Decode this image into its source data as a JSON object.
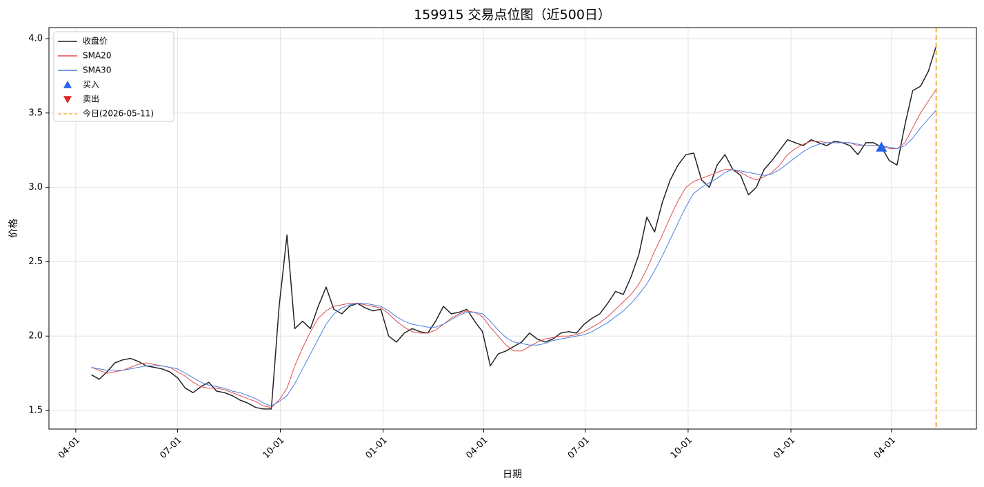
{
  "chart_data": {
    "type": "line",
    "title": "159915 交易点位图（近500日）",
    "xlabel": "日期",
    "ylabel": "价格",
    "x": [
      "2024-04-15",
      "2024-04-22",
      "2024-04-29",
      "2024-05-06",
      "2024-05-13",
      "2024-05-20",
      "2024-05-27",
      "2024-06-03",
      "2024-06-10",
      "2024-06-17",
      "2024-06-24",
      "2024-07-01",
      "2024-07-08",
      "2024-07-15",
      "2024-07-22",
      "2024-07-29",
      "2024-08-05",
      "2024-08-12",
      "2024-08-19",
      "2024-08-26",
      "2024-09-02",
      "2024-09-09",
      "2024-09-16",
      "2024-09-23",
      "2024-09-30",
      "2024-10-07",
      "2024-10-14",
      "2024-10-21",
      "2024-10-28",
      "2024-11-04",
      "2024-11-11",
      "2024-11-18",
      "2024-11-25",
      "2024-12-02",
      "2024-12-09",
      "2024-12-16",
      "2024-12-23",
      "2024-12-30",
      "2025-01-06",
      "2025-01-13",
      "2025-01-20",
      "2025-01-27",
      "2025-02-03",
      "2025-02-10",
      "2025-02-17",
      "2025-02-24",
      "2025-03-03",
      "2025-03-10",
      "2025-03-17",
      "2025-03-24",
      "2025-03-31",
      "2025-04-07",
      "2025-04-14",
      "2025-04-21",
      "2025-04-28",
      "2025-05-05",
      "2025-05-12",
      "2025-05-19",
      "2025-05-26",
      "2025-06-02",
      "2025-06-09",
      "2025-06-16",
      "2025-06-23",
      "2025-06-30",
      "2025-07-07",
      "2025-07-14",
      "2025-07-21",
      "2025-07-28",
      "2025-08-04",
      "2025-08-11",
      "2025-08-18",
      "2025-08-25",
      "2025-09-01",
      "2025-09-08",
      "2025-09-15",
      "2025-09-22",
      "2025-09-29",
      "2025-10-06",
      "2025-10-13",
      "2025-10-20",
      "2025-10-27",
      "2025-11-03",
      "2025-11-10",
      "2025-11-17",
      "2025-11-24",
      "2025-12-01",
      "2025-12-08",
      "2025-12-15",
      "2025-12-22",
      "2025-12-29",
      "2026-01-05",
      "2026-01-12",
      "2026-01-19",
      "2026-01-26",
      "2026-02-02",
      "2026-02-09",
      "2026-02-16",
      "2026-02-23",
      "2026-03-02",
      "2026-03-09",
      "2026-03-16",
      "2026-03-23",
      "2026-03-30",
      "2026-04-06",
      "2026-04-13",
      "2026-04-20",
      "2026-04-27",
      "2026-05-04",
      "2026-05-11"
    ],
    "series": [
      {
        "name": "收盘价",
        "color": "#222222",
        "width": 1.5,
        "values": [
          1.74,
          1.71,
          1.76,
          1.82,
          1.84,
          1.85,
          1.83,
          1.8,
          1.79,
          1.78,
          1.76,
          1.72,
          1.65,
          1.62,
          1.66,
          1.69,
          1.63,
          1.62,
          1.6,
          1.57,
          1.55,
          1.52,
          1.51,
          1.51,
          2.2,
          2.68,
          2.05,
          2.1,
          2.05,
          2.2,
          2.33,
          2.18,
          2.15,
          2.2,
          2.22,
          2.19,
          2.17,
          2.18,
          2.0,
          1.96,
          2.02,
          2.05,
          2.03,
          2.02,
          2.1,
          2.2,
          2.15,
          2.16,
          2.18,
          2.1,
          2.03,
          1.8,
          1.88,
          1.9,
          1.93,
          1.96,
          2.02,
          1.98,
          1.96,
          1.98,
          2.02,
          2.03,
          2.02,
          2.08,
          2.12,
          2.15,
          2.22,
          2.3,
          2.28,
          2.4,
          2.55,
          2.8,
          2.7,
          2.9,
          3.05,
          3.15,
          3.22,
          3.23,
          3.05,
          3.0,
          3.15,
          3.22,
          3.12,
          3.08,
          2.95,
          3.0,
          3.12,
          3.18,
          3.25,
          3.32,
          3.3,
          3.28,
          3.32,
          3.3,
          3.28,
          3.31,
          3.3,
          3.28,
          3.22,
          3.3,
          3.3,
          3.27,
          3.18,
          3.15,
          3.42,
          3.65,
          3.68,
          3.78,
          3.95
        ]
      },
      {
        "name": "SMA20",
        "color": "#e04a4a",
        "width": 1,
        "values": [
          1.79,
          1.77,
          1.75,
          1.76,
          1.77,
          1.79,
          1.81,
          1.82,
          1.81,
          1.8,
          1.79,
          1.76,
          1.73,
          1.69,
          1.66,
          1.65,
          1.65,
          1.64,
          1.62,
          1.6,
          1.58,
          1.56,
          1.53,
          1.52,
          1.57,
          1.65,
          1.8,
          1.92,
          2.03,
          2.12,
          2.17,
          2.2,
          2.21,
          2.22,
          2.22,
          2.21,
          2.2,
          2.19,
          2.15,
          2.1,
          2.06,
          2.03,
          2.02,
          2.02,
          2.04,
          2.08,
          2.12,
          2.15,
          2.17,
          2.16,
          2.13,
          2.06,
          2.0,
          1.94,
          1.9,
          1.9,
          1.93,
          1.96,
          1.98,
          1.99,
          2.0,
          2.0,
          2.01,
          2.03,
          2.06,
          2.09,
          2.13,
          2.18,
          2.23,
          2.28,
          2.35,
          2.45,
          2.57,
          2.68,
          2.8,
          2.91,
          3.0,
          3.04,
          3.06,
          3.08,
          3.1,
          3.12,
          3.12,
          3.1,
          3.07,
          3.05,
          3.07,
          3.1,
          3.15,
          3.22,
          3.26,
          3.29,
          3.31,
          3.31,
          3.3,
          3.3,
          3.3,
          3.3,
          3.28,
          3.28,
          3.28,
          3.28,
          3.26,
          3.26,
          3.3,
          3.4,
          3.5,
          3.58,
          3.66
        ]
      },
      {
        "name": "SMA30",
        "color": "#4a7fe0",
        "width": 1,
        "values": [
          1.79,
          1.78,
          1.77,
          1.77,
          1.77,
          1.78,
          1.79,
          1.8,
          1.8,
          1.8,
          1.79,
          1.78,
          1.75,
          1.72,
          1.69,
          1.67,
          1.66,
          1.65,
          1.63,
          1.62,
          1.6,
          1.58,
          1.55,
          1.53,
          1.56,
          1.6,
          1.68,
          1.78,
          1.88,
          1.98,
          2.08,
          2.15,
          2.19,
          2.21,
          2.22,
          2.22,
          2.21,
          2.2,
          2.17,
          2.13,
          2.1,
          2.08,
          2.07,
          2.06,
          2.06,
          2.08,
          2.11,
          2.14,
          2.16,
          2.16,
          2.15,
          2.1,
          2.04,
          1.99,
          1.96,
          1.95,
          1.94,
          1.94,
          1.95,
          1.97,
          1.98,
          1.99,
          2.0,
          2.01,
          2.03,
          2.06,
          2.09,
          2.13,
          2.17,
          2.22,
          2.28,
          2.35,
          2.44,
          2.54,
          2.65,
          2.76,
          2.87,
          2.96,
          3.0,
          3.03,
          3.06,
          3.1,
          3.12,
          3.11,
          3.1,
          3.09,
          3.08,
          3.09,
          3.12,
          3.16,
          3.2,
          3.24,
          3.27,
          3.29,
          3.3,
          3.3,
          3.3,
          3.3,
          3.29,
          3.28,
          3.28,
          3.28,
          3.27,
          3.26,
          3.28,
          3.33,
          3.4,
          3.46,
          3.52
        ]
      },
      {
        "name": "买入",
        "color": "#2563eb",
        "marker": "up",
        "x": [
          "2026-03-23"
        ],
        "values": [
          3.27
        ]
      },
      {
        "name": "卖出",
        "color": "#dc2626",
        "marker": "down",
        "x": [],
        "values": []
      }
    ],
    "vline": {
      "name": "今日(2026-05-11)",
      "x": "2026-05-11",
      "color": "#f5b041",
      "style": "dashed"
    },
    "xlim": [
      "2024-03-08",
      "2026-06-16"
    ],
    "xticks": [
      {
        "value": "2024-04-01",
        "label": "04-01"
      },
      {
        "value": "2024-07-01",
        "label": "07-01"
      },
      {
        "value": "2024-10-01",
        "label": "10-01"
      },
      {
        "value": "2025-01-01",
        "label": "01-01"
      },
      {
        "value": "2025-04-01",
        "label": "04-01"
      },
      {
        "value": "2025-07-01",
        "label": "07-01"
      },
      {
        "value": "2025-10-01",
        "label": "10-01"
      },
      {
        "value": "2026-01-01",
        "label": "01-01"
      },
      {
        "value": "2026-04-01",
        "label": "04-01"
      }
    ],
    "ylim": [
      1.375,
      4.074
    ],
    "yticks": [
      1.5,
      {
        "value": 2,
        "label": "2.0"
      },
      2.5,
      {
        "value": 3,
        "label": "3.0"
      },
      3.5,
      {
        "value": 4,
        "label": "4.0"
      }
    ],
    "grid": true,
    "legend": "upper left"
  }
}
